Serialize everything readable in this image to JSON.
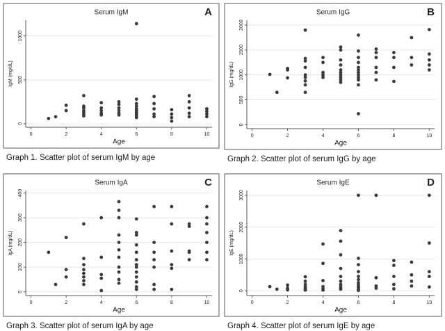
{
  "chart_data": [
    {
      "type": "scatter",
      "title": "Serum IgM",
      "label": "A",
      "caption": "Graph 1. Scatter plot of serum IgM by age",
      "xlabel": "Age",
      "ylabel": "IgM (mg/dL)",
      "color": "#3a3a3a",
      "grid": true,
      "xlim": [
        -0.3,
        10.3
      ],
      "xticks": [
        0,
        2,
        4,
        6,
        8,
        10
      ],
      "ylim": [
        -40,
        1180
      ],
      "yticks": [
        0,
        500,
        1000
      ],
      "x": [
        1,
        1.4,
        2,
        2,
        3,
        3,
        3,
        3,
        3,
        3,
        3,
        4,
        4,
        4,
        4,
        4,
        5,
        5,
        5,
        5,
        5,
        5,
        6,
        6,
        6,
        6,
        6,
        6,
        6,
        6,
        6,
        6,
        7,
        7,
        7,
        7,
        7,
        8,
        8,
        8,
        8,
        9,
        9,
        9,
        9,
        9,
        10,
        10,
        10,
        10
      ],
      "values": [
        60,
        80,
        150,
        210,
        320,
        200,
        180,
        150,
        130,
        110,
        90,
        240,
        180,
        150,
        120,
        100,
        250,
        220,
        180,
        150,
        120,
        100,
        1140,
        280,
        230,
        200,
        170,
        150,
        130,
        110,
        90,
        70,
        310,
        230,
        170,
        110,
        80,
        160,
        110,
        70,
        30,
        320,
        250,
        180,
        120,
        80,
        170,
        140,
        110,
        80
      ]
    },
    {
      "type": "scatter",
      "title": "Serum IgG",
      "label": "B",
      "caption": "Graph 2. Scatter plot of serum IgG by age",
      "xlabel": "Age",
      "ylabel": "IgG (mg/dL)",
      "color": "#3a3a3a",
      "grid": true,
      "xlim": [
        -0.3,
        10.3
      ],
      "xticks": [
        0,
        2,
        4,
        6,
        8,
        10
      ],
      "ylim": [
        -80,
        2100
      ],
      "yticks": [
        0,
        500,
        1000,
        1500,
        2000
      ],
      "x": [
        1,
        1.4,
        2,
        2,
        2,
        3,
        3,
        3,
        3,
        3,
        3,
        3,
        3,
        3,
        4,
        4,
        4,
        4,
        4,
        5,
        5,
        5,
        5,
        5,
        5,
        5,
        5,
        5,
        5,
        6,
        6,
        6,
        6,
        6,
        6,
        6,
        6,
        6,
        6,
        6,
        6,
        7,
        7,
        7,
        7,
        7,
        7,
        8,
        8,
        8,
        8,
        9,
        9,
        9,
        10,
        10,
        10,
        10,
        10
      ],
      "values": [
        1010,
        650,
        1130,
        1100,
        940,
        1900,
        1330,
        1280,
        1150,
        1000,
        950,
        880,
        800,
        650,
        1350,
        1250,
        1050,
        1000,
        950,
        1560,
        1500,
        1300,
        1200,
        1100,
        1050,
        1000,
        950,
        900,
        850,
        1800,
        1480,
        1350,
        1250,
        1150,
        1100,
        1050,
        1000,
        950,
        900,
        800,
        220,
        1520,
        1450,
        1350,
        1150,
        1050,
        900,
        1450,
        1350,
        1150,
        870,
        1750,
        1350,
        1200,
        1910,
        1420,
        1300,
        1200,
        1100
      ]
    },
    {
      "type": "scatter",
      "title": "Serum IgA",
      "label": "C",
      "caption": "Graph 3. Scatter plot of serum IgA by age",
      "xlabel": "Age",
      "ylabel": "IgA (mg/dL)",
      "color": "#3a3a3a",
      "grid": true,
      "xlim": [
        -0.3,
        10.3
      ],
      "xticks": [
        0,
        2,
        4,
        6,
        8,
        10
      ],
      "ylim": [
        -15,
        410
      ],
      "yticks": [
        0,
        100,
        200,
        300,
        400
      ],
      "x": [
        1,
        1.4,
        2,
        2,
        2,
        3,
        3,
        3,
        3,
        3,
        3,
        3,
        3,
        4,
        4,
        4,
        4,
        4,
        5,
        5,
        5,
        5,
        5,
        5,
        5,
        5,
        5,
        5,
        5,
        6,
        6,
        6,
        6,
        6,
        6,
        6,
        6,
        6,
        6,
        6,
        6,
        6,
        7,
        7,
        7,
        7,
        7,
        7,
        7,
        8,
        8,
        8,
        8,
        8,
        8,
        9,
        9,
        9,
        9,
        9,
        10,
        10,
        10,
        10,
        10,
        10,
        10
      ],
      "values": [
        160,
        30,
        220,
        90,
        60,
        275,
        135,
        110,
        90,
        75,
        60,
        45,
        30,
        300,
        140,
        70,
        55,
        5,
        365,
        330,
        300,
        230,
        200,
        170,
        140,
        100,
        80,
        50,
        35,
        295,
        240,
        230,
        190,
        160,
        130,
        110,
        100,
        80,
        60,
        40,
        20,
        10,
        345,
        200,
        160,
        130,
        100,
        30,
        10,
        345,
        275,
        165,
        110,
        95,
        10,
        275,
        265,
        165,
        160,
        130,
        345,
        300,
        275,
        240,
        200,
        160,
        130
      ]
    },
    {
      "type": "scatter",
      "title": "Serum IgE",
      "label": "D",
      "caption": "Graph 4. Scatter plot of serum IgE by age",
      "xlabel": "Age",
      "ylabel": "IgE (mg/dL)",
      "color": "#3a3a3a",
      "grid": true,
      "xlim": [
        -0.3,
        10.3
      ],
      "xticks": [
        0,
        2,
        4,
        6,
        8,
        10
      ],
      "ylim": [
        -150,
        3150
      ],
      "yticks": [
        0,
        1000,
        2000,
        3000
      ],
      "x": [
        1,
        1.4,
        2,
        2,
        2,
        3,
        3,
        3,
        3,
        3,
        3,
        3,
        4,
        4,
        4,
        4,
        4,
        4,
        5,
        5,
        5,
        5,
        5,
        5,
        5,
        5,
        5,
        5,
        6,
        6,
        6,
        6,
        6,
        6,
        6,
        6,
        6,
        6,
        6,
        6,
        7,
        7,
        7,
        7,
        8,
        8,
        8,
        8,
        8,
        9,
        9,
        9,
        9,
        10,
        10,
        10,
        10,
        10
      ],
      "values": [
        130,
        50,
        180,
        80,
        30,
        440,
        300,
        200,
        130,
        80,
        50,
        20,
        1470,
        860,
        320,
        130,
        60,
        20,
        1890,
        1560,
        1130,
        700,
        450,
        300,
        200,
        130,
        80,
        50,
        3000,
        1020,
        820,
        600,
        450,
        350,
        250,
        180,
        120,
        80,
        40,
        10,
        3000,
        410,
        150,
        80,
        950,
        800,
        450,
        200,
        60,
        900,
        500,
        300,
        150,
        3000,
        1500,
        600,
        450,
        120
      ]
    }
  ]
}
